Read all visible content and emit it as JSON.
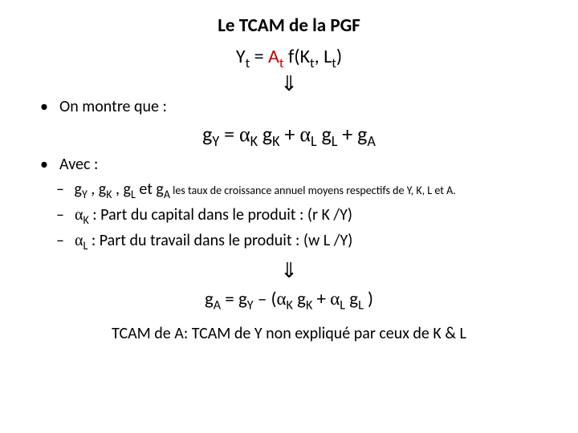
{
  "colors": {
    "text": "#000000",
    "accent_red": "#c00000",
    "background": "#ffffff"
  },
  "fonts": {
    "body_family": "Calibri, Arial, sans-serif",
    "greek_family": "Times New Roman, serif",
    "title_size_pt": 23,
    "eq_size_pt": 24,
    "main_eq_size_pt": 26,
    "body_size_pt": 20,
    "tail_size_pt": 14
  },
  "title": "Le TCAM de la PGF",
  "eq1": {
    "Y": "Y",
    "tsub": "t",
    "eq": " = ",
    "A": "A",
    "f": " f(K",
    "comma": ", L",
    "close": ")"
  },
  "arrow": "⇓",
  "bullet1": {
    "dot": "•",
    "text": "On montre que :"
  },
  "main_eq": {
    "gY": "g",
    "Ysub": "Y",
    "eq": " = ",
    "aK": "α",
    "Ksub": "K",
    "gK": " g",
    "Ksub2": "K",
    "plus1": " + ",
    "aL": "α",
    "Lsub": "L",
    "gL": " g",
    "Lsub2": "L",
    "plus2": " + g",
    "Asub": "A"
  },
  "bullet2": {
    "dot": "•",
    "text": "Avec :"
  },
  "sub1": {
    "dash": "–",
    "lead": " g",
    "p1": " , g",
    "p2": " , g",
    "p3": " et g",
    "tail": " les taux de croissance annuel moyens respectifs de Y, K, L et A.",
    "Y": "Y",
    "K": "K",
    "L": "L",
    "A": "A"
  },
  "sub2": {
    "dash": "–",
    "alpha": " α",
    "K": "K",
    "text": " : Part du capital dans le produit : (r K /Y)"
  },
  "sub3": {
    "dash": "–",
    "alpha": " α",
    "L": "L",
    "text": " : Part du travail dans le produit  : (w L /Y)"
  },
  "arrow2": "⇓",
  "eq_final": {
    "gA": "g",
    "Asub": "A",
    "eq": " = g",
    "Ysub": "Y",
    "minus": " – (",
    "aK": "α",
    "Ksub": "K",
    "gK": " g",
    "Ksub2": "K",
    "plus": " + ",
    "aL": "α",
    "Lsub": "L",
    "gL": " g",
    "Lsub2": "L",
    "close": " )"
  },
  "conclusion": "TCAM de A: TCAM de Y non expliqué par ceux de K & L"
}
